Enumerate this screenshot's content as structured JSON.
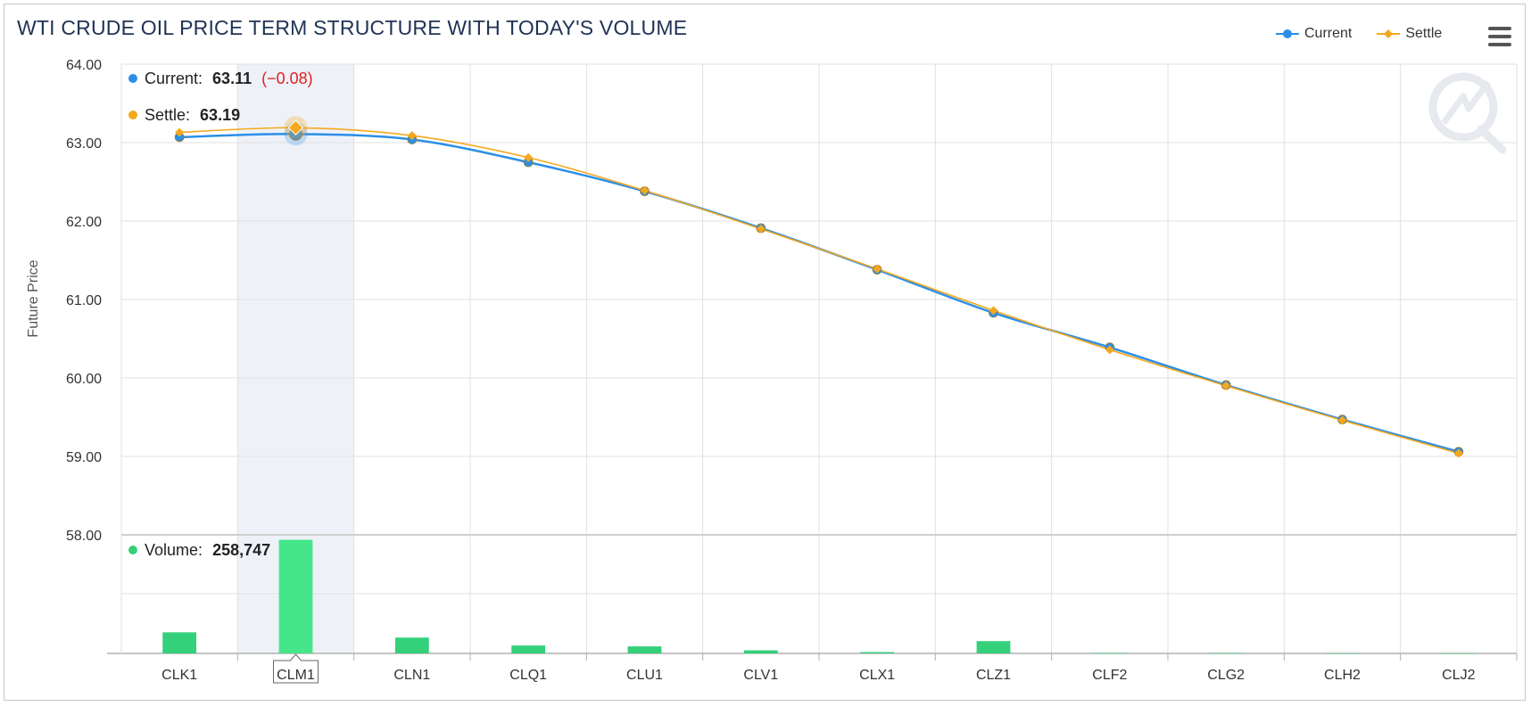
{
  "chart_data": {
    "type": "line",
    "title": "WTI CRUDE OIL PRICE TERM STRUCTURE WITH TODAY'S VOLUME",
    "ylabel": "Future Price",
    "categories": [
      "CLK1",
      "CLM1",
      "CLN1",
      "CLQ1",
      "CLU1",
      "CLV1",
      "CLX1",
      "CLZ1",
      "CLF2",
      "CLG2",
      "CLH2",
      "CLJ2"
    ],
    "ylim": [
      58,
      64
    ],
    "yticks": [
      "58.00",
      "59.00",
      "60.00",
      "61.00",
      "62.00",
      "63.00",
      "64.00"
    ],
    "series": [
      {
        "name": "Current",
        "color": "#2b8fe8",
        "values": [
          63.07,
          63.11,
          63.04,
          62.75,
          62.38,
          61.91,
          61.38,
          60.83,
          60.39,
          59.91,
          59.47,
          59.06
        ]
      },
      {
        "name": "Settle",
        "color": "#f5a81c",
        "values": [
          63.13,
          63.19,
          63.09,
          62.81,
          62.39,
          61.9,
          61.39,
          60.86,
          60.36,
          59.9,
          59.46,
          59.04
        ]
      }
    ],
    "volume": {
      "name": "Volume",
      "color": "#34d07a",
      "values": [
        48000,
        258747,
        36000,
        18000,
        16000,
        7000,
        3000,
        28000,
        600,
        300,
        200,
        100
      ],
      "ylim": [
        0,
        270000
      ]
    },
    "highlight_index": 1,
    "grid": true,
    "legend_position": "top-right"
  },
  "tooltip": {
    "current_label": "Current:",
    "current_value": "63.11",
    "current_change": "(−0.08)",
    "settle_label": "Settle:",
    "settle_value": "63.19",
    "volume_label": "Volume:",
    "volume_value": "258,747"
  },
  "legend": {
    "current": "Current",
    "settle": "Settle"
  }
}
